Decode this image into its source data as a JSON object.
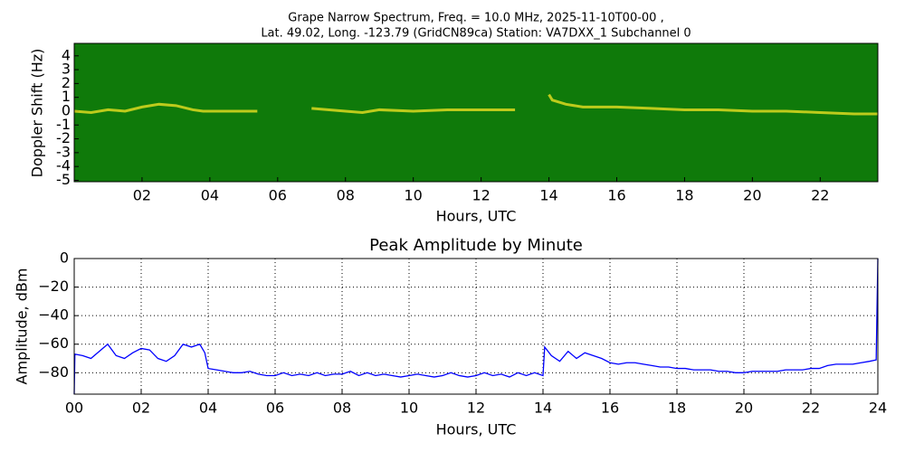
{
  "chart_data": [
    {
      "type": "spectrogram",
      "title": [
        "Grape Narrow Spectrum, Freq. = 10.0 MHz, 2025-11-10T00-00 ,",
        "Lat.  49.02, Long. -123.79 (GridCN89ca) Station: VA7DXX_1 Subchannel 0"
      ],
      "xlabel": "Hours, UTC",
      "ylabel": "Doppler Shift (Hz)",
      "xlim": [
        0,
        23.7
      ],
      "ylim": [
        -5.1,
        4.9
      ],
      "xticks": [
        {
          "value": 2,
          "label": "02"
        },
        {
          "value": 4,
          "label": "04"
        },
        {
          "value": 6,
          "label": "06"
        },
        {
          "value": 8,
          "label": "08"
        },
        {
          "value": 10,
          "label": "10"
        },
        {
          "value": 12,
          "label": "12"
        },
        {
          "value": 14,
          "label": "14"
        },
        {
          "value": 16,
          "label": "16"
        },
        {
          "value": 18,
          "label": "18"
        },
        {
          "value": 20,
          "label": "20"
        },
        {
          "value": 22,
          "label": "22"
        }
      ],
      "yticks": [
        4,
        3,
        2,
        1,
        0,
        -1,
        -2,
        -3,
        -4,
        -5
      ],
      "background": "#0f7a0a",
      "color": "#e8e020",
      "x": [
        0,
        0.5,
        1,
        1.5,
        2,
        2.5,
        3,
        3.5,
        3.8,
        4,
        5,
        5.4,
        6,
        7,
        8,
        8.5,
        9,
        10,
        11,
        12,
        13,
        13.5,
        14,
        14.1,
        14.5,
        15,
        16,
        17,
        18,
        19,
        20,
        21,
        22,
        23,
        23.7
      ],
      "values": [
        0,
        -0.1,
        0.1,
        0,
        0.3,
        0.5,
        0.4,
        0.1,
        0,
        0,
        0,
        0,
        null,
        0.2,
        0,
        -0.1,
        0.1,
        0,
        0.1,
        0.1,
        0.1,
        null,
        1.2,
        0.8,
        0.5,
        0.3,
        0.3,
        0.2,
        0.1,
        0.1,
        0,
        0,
        -0.1,
        -0.2,
        -0.2
      ]
    },
    {
      "type": "line",
      "title": "Peak Amplitude by Minute",
      "xlabel": "Hours, UTC",
      "ylabel": "Amplitude, dBm",
      "xlim": [
        0,
        24
      ],
      "ylim": [
        -95,
        0
      ],
      "grid": true,
      "color": "#0000ff",
      "xticks": [
        {
          "value": 0,
          "label": "00"
        },
        {
          "value": 2,
          "label": "02"
        },
        {
          "value": 4,
          "label": "04"
        },
        {
          "value": 6,
          "label": "06"
        },
        {
          "value": 8,
          "label": "08"
        },
        {
          "value": 10,
          "label": "10"
        },
        {
          "value": 12,
          "label": "12"
        },
        {
          "value": 14,
          "label": "14"
        },
        {
          "value": 16,
          "label": "16"
        },
        {
          "value": 18,
          "label": "18"
        },
        {
          "value": 20,
          "label": "20"
        },
        {
          "value": 22,
          "label": "22"
        },
        24
      ],
      "yticks": [
        0,
        {
          "value": -20,
          "label": "−20"
        },
        {
          "value": -40,
          "label": "−40"
        },
        {
          "value": -60,
          "label": "−60"
        },
        {
          "value": -80,
          "label": "−80"
        }
      ],
      "x": [
        0,
        0.02,
        0.25,
        0.5,
        0.75,
        1.0,
        1.25,
        1.5,
        1.75,
        2.0,
        2.25,
        2.5,
        2.75,
        3.0,
        3.25,
        3.5,
        3.75,
        3.9,
        4.0,
        4.25,
        4.5,
        4.75,
        5.0,
        5.25,
        5.5,
        5.75,
        6.0,
        6.25,
        6.5,
        6.75,
        7.0,
        7.25,
        7.5,
        7.75,
        8.0,
        8.25,
        8.5,
        8.75,
        9.0,
        9.25,
        9.5,
        9.75,
        10.0,
        10.25,
        10.5,
        10.75,
        11.0,
        11.25,
        11.5,
        11.75,
        12.0,
        12.25,
        12.5,
        12.75,
        13.0,
        13.25,
        13.5,
        13.75,
        14.0,
        14.05,
        14.25,
        14.5,
        14.75,
        15.0,
        15.25,
        15.5,
        15.75,
        16.0,
        16.25,
        16.5,
        16.75,
        17.0,
        17.25,
        17.5,
        17.75,
        18.0,
        18.25,
        18.5,
        18.75,
        19.0,
        19.25,
        19.5,
        19.75,
        20.0,
        20.25,
        20.5,
        20.75,
        21.0,
        21.25,
        21.5,
        21.75,
        22.0,
        22.25,
        22.5,
        22.75,
        23.0,
        23.25,
        23.5,
        23.75,
        23.95,
        24.0
      ],
      "values": [
        -95,
        -67,
        -68,
        -70,
        -65,
        -60,
        -68,
        -70,
        -66,
        -63,
        -64,
        -70,
        -72,
        -68,
        -60,
        -62,
        -60,
        -66,
        -77,
        -78,
        -79,
        -80,
        -80,
        -79,
        -81,
        -82,
        -82,
        -80,
        -82,
        -81,
        -82,
        -80,
        -82,
        -81,
        -81,
        -79,
        -82,
        -80,
        -82,
        -81,
        -82,
        -83,
        -82,
        -81,
        -82,
        -83,
        -82,
        -80,
        -82,
        -83,
        -82,
        -80,
        -82,
        -81,
        -83,
        -80,
        -82,
        -80,
        -82,
        -62,
        -68,
        -72,
        -65,
        -70,
        -66,
        -68,
        -70,
        -73,
        -74,
        -73,
        -73,
        -74,
        -75,
        -76,
        -76,
        -77,
        -77,
        -78,
        -78,
        -78,
        -79,
        -79,
        -80,
        -80,
        -79,
        -79,
        -79,
        -79,
        -78,
        -78,
        -78,
        -77,
        -77,
        -75,
        -74,
        -74,
        -74,
        -73,
        -72,
        -71,
        0
      ]
    }
  ]
}
